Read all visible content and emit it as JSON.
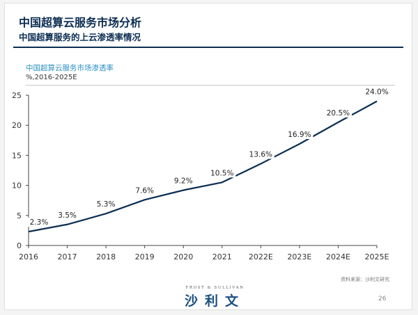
{
  "slide": {
    "title": "中国超算云服务市场分析",
    "subtitle": "中国超算服务的上云渗透率情况",
    "source": "资料来源：沙利文研究",
    "page_number": "26",
    "logo_small": "FROST & SULLIVAN",
    "logo_big": "沙利文"
  },
  "chart_data": {
    "type": "line",
    "title": "中国超算云服务市场渗透率",
    "ylabel": "%,2016-2025E",
    "categories": [
      "2016",
      "2017",
      "2018",
      "2019",
      "2020",
      "2021",
      "2022E",
      "2023E",
      "2024E",
      "2025E"
    ],
    "values": [
      2.3,
      3.5,
      5.3,
      7.6,
      9.2,
      10.5,
      13.6,
      16.9,
      20.5,
      24.0
    ],
    "data_labels": [
      "2.3%",
      "3.5%",
      "5.3%",
      "7.6%",
      "9.2%",
      "10.5%",
      "13.6%",
      "16.9%",
      "20.5%",
      "24.0%"
    ],
    "yticks": [
      "0",
      "5",
      "10",
      "15",
      "20",
      "25"
    ],
    "ylim": [
      0,
      25
    ],
    "grid": false,
    "colors": {
      "line": "#0b2d52",
      "axis": "#444444"
    }
  }
}
